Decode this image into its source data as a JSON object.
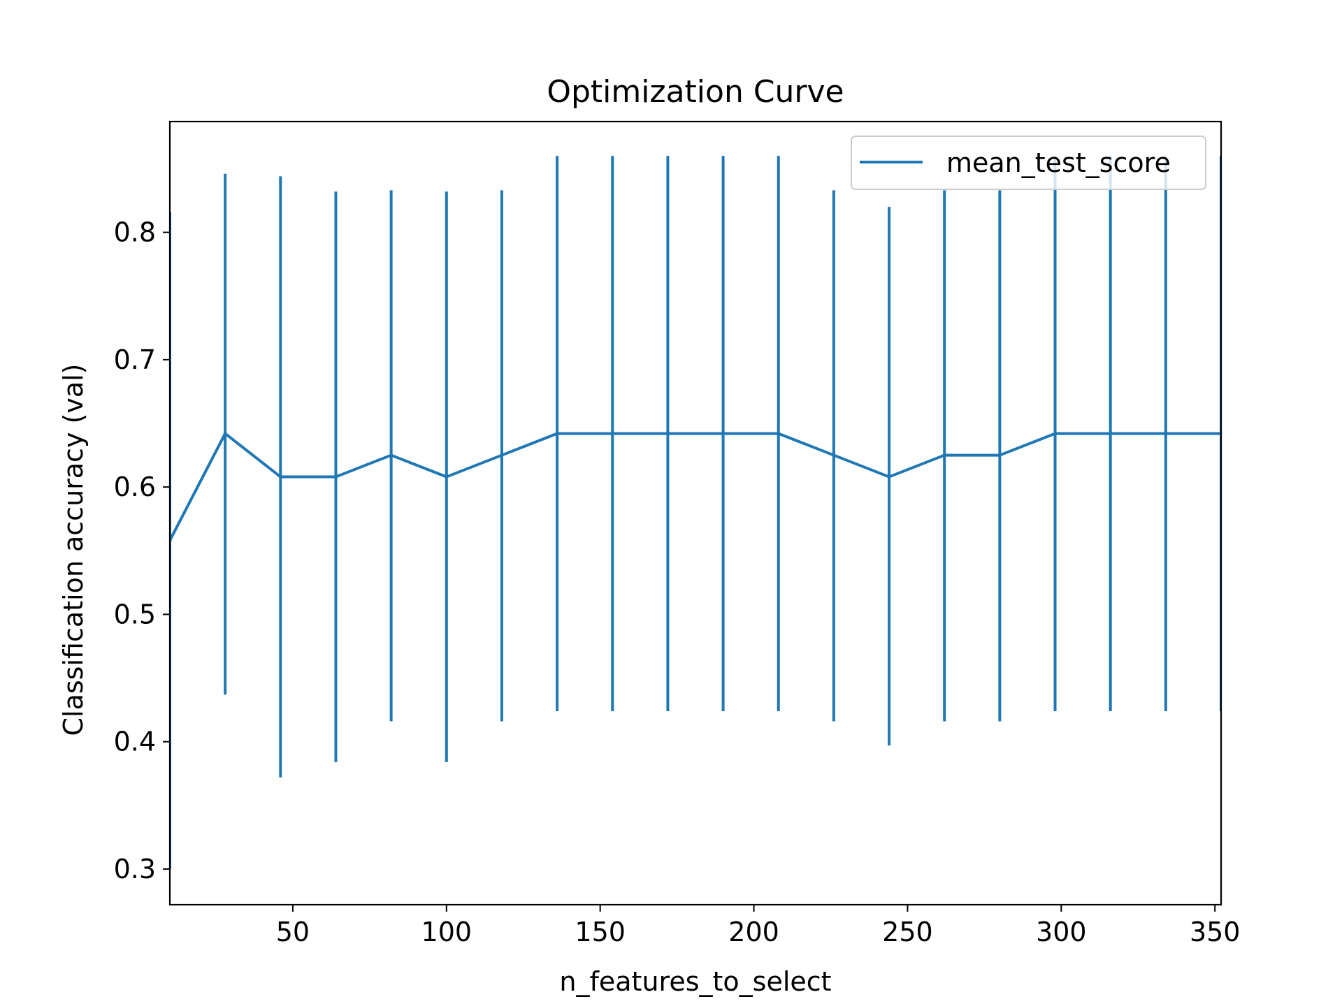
{
  "chart_data": {
    "type": "line",
    "title": "Optimization Curve",
    "xlabel": "n_features_to_select",
    "ylabel": "Classification accuracy (val)",
    "xlim": [
      10,
      352
    ],
    "ylim": [
      0.272,
      0.887
    ],
    "xticks": [
      50,
      100,
      150,
      200,
      250,
      300,
      350
    ],
    "yticks": [
      0.3,
      0.4,
      0.5,
      0.6,
      0.7,
      0.8
    ],
    "grid": false,
    "legend": {
      "position": "top-right"
    },
    "series": [
      {
        "name": "mean_test_score",
        "color": "#1f77b4",
        "x": [
          10,
          28,
          46,
          64,
          82,
          100,
          118,
          136,
          154,
          172,
          190,
          208,
          226,
          244,
          262,
          280,
          298,
          316,
          334,
          352
        ],
        "y": [
          0.558,
          0.642,
          0.608,
          0.608,
          0.625,
          0.608,
          0.625,
          0.642,
          0.642,
          0.642,
          0.642,
          0.642,
          0.625,
          0.608,
          0.625,
          0.625,
          0.642,
          0.642,
          0.642,
          0.642
        ],
        "err_low": [
          0.3,
          0.437,
          0.372,
          0.384,
          0.416,
          0.384,
          0.416,
          0.424,
          0.424,
          0.424,
          0.424,
          0.424,
          0.416,
          0.397,
          0.416,
          0.416,
          0.424,
          0.424,
          0.424,
          0.424
        ],
        "err_high": [
          0.816,
          0.846,
          0.844,
          0.832,
          0.833,
          0.832,
          0.833,
          0.86,
          0.86,
          0.86,
          0.86,
          0.86,
          0.833,
          0.82,
          0.833,
          0.833,
          0.86,
          0.86,
          0.86,
          0.86
        ]
      }
    ]
  }
}
